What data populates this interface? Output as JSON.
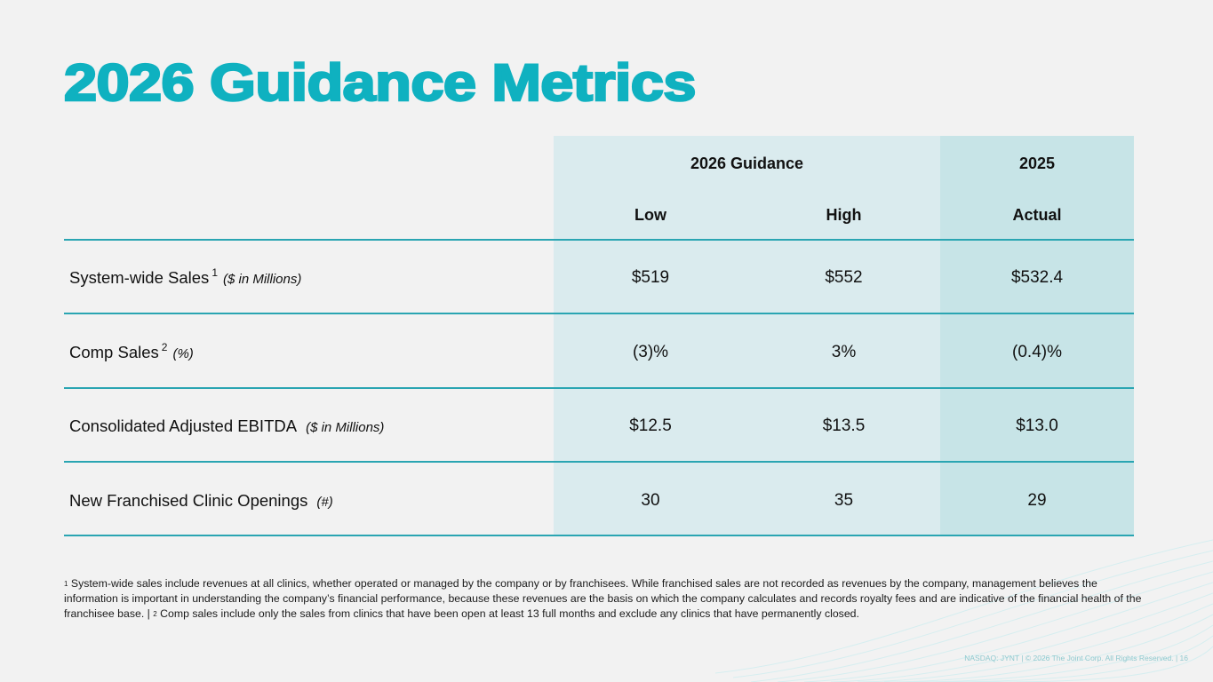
{
  "slide": {
    "title": "2026 Guidance Metrics",
    "accent_color": "#0fb1c0"
  },
  "table": {
    "group_headers": [
      "2026 Guidance",
      "2025"
    ],
    "column_headers": [
      "Low",
      "High",
      "Actual"
    ],
    "rows": [
      {
        "label": "System-wide Sales",
        "footnote_ref": "1",
        "unit": "($ in Millions)",
        "low": "$519",
        "high": "$552",
        "actual": "$532.4"
      },
      {
        "label": "Comp Sales",
        "footnote_ref": "2",
        "unit": "(%)",
        "low": "(3)%",
        "high": "3%",
        "actual": "(0.4)%"
      },
      {
        "label": "Consolidated Adjusted EBITDA",
        "footnote_ref": "",
        "unit": "($ in Millions)",
        "low": "$12.5",
        "high": "$13.5",
        "actual": "$13.0"
      },
      {
        "label": "New Franchised Clinic Openings",
        "footnote_ref": "",
        "unit": "(#)",
        "low": "30",
        "high": "35",
        "actual": "29"
      }
    ]
  },
  "footnotes": {
    "ref1": "1",
    "text1": "System-wide sales include revenues at all clinics, whether operated or managed by the company or by franchisees. While franchised sales are not recorded as revenues by the company, management believes the information is important  in understanding the company’s financial performance, because these revenues are the basis on which the company calculates and records royalty fees and are indicative of the financial health of the franchisee base. |",
    "ref2": "2",
    "text2": "Comp sales include only the sales from clinics that have been open at least 13 full months and exclude any clinics that have permanently closed."
  },
  "footer": {
    "credit": "NASDAQ: JYNT   |  © 2026 The Joint Corp. All Rights Reserved.  |  16"
  }
}
